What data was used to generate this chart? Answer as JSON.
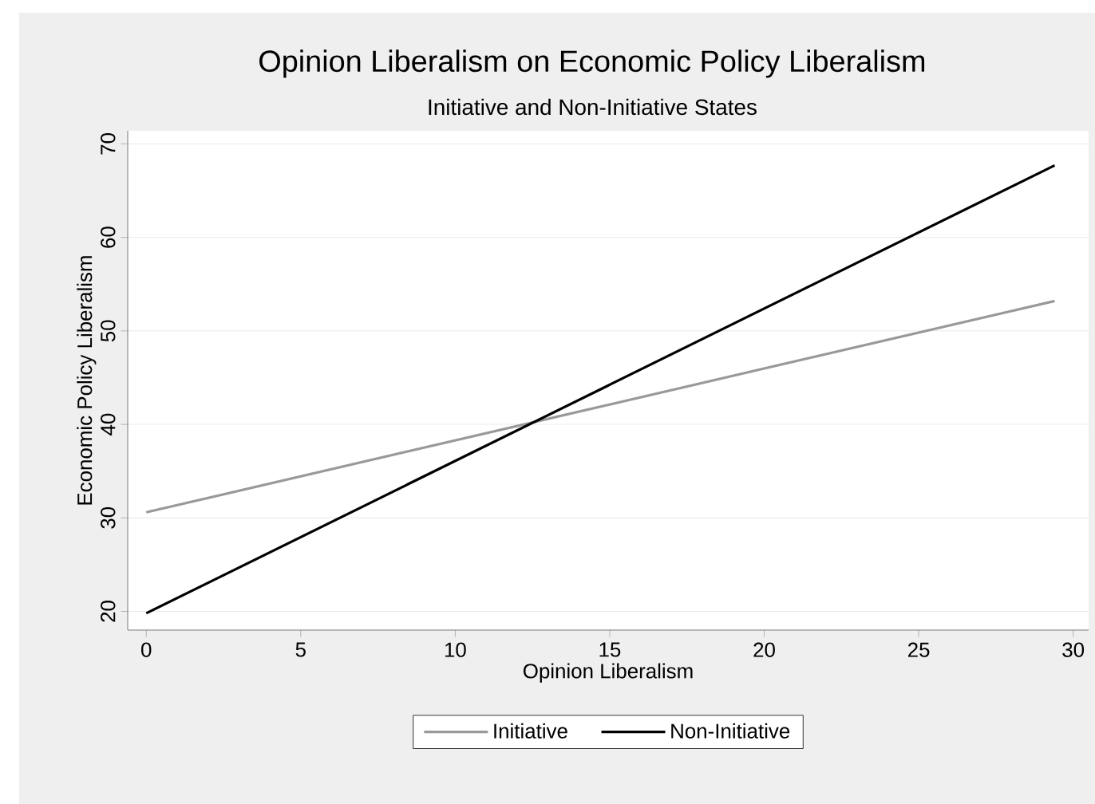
{
  "chart_data": {
    "type": "line",
    "title": "Opinion Liberalism on Economic Policy Liberalism",
    "subtitle": "Initiative and Non-Initiative States",
    "xlabel": "Opinion Liberalism",
    "ylabel": "Economic Policy Liberalism",
    "x": [
      0,
      29.4
    ],
    "series": [
      {
        "name": "Initiative",
        "color": "#999999",
        "values": [
          30.6,
          53.2
        ]
      },
      {
        "name": "Non-Initiative",
        "color": "#000000",
        "values": [
          19.8,
          67.7
        ]
      }
    ],
    "xlim": [
      -0.6,
      30.5
    ],
    "ylim": [
      18,
      71.4
    ],
    "xticks": [
      0,
      5,
      10,
      15,
      20,
      25,
      30
    ],
    "yticks": [
      20,
      30,
      40,
      50,
      60,
      70
    ],
    "grid": "y",
    "legend": "bottom",
    "marker": "none",
    "line_style": "solid"
  }
}
